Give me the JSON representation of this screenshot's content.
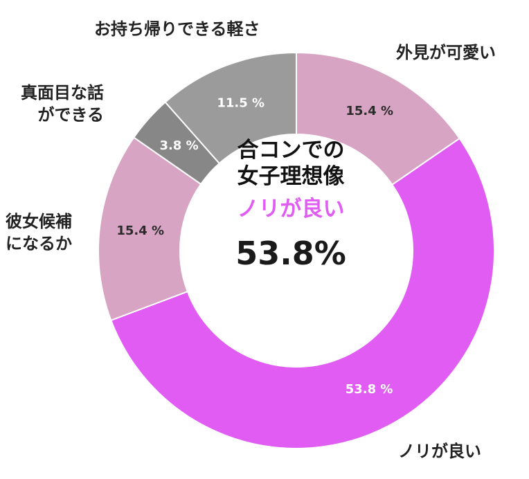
{
  "chart_data": {
    "type": "pie",
    "style": "donut",
    "slices": [
      {
        "label": "外見が可愛い",
        "value": 15.4,
        "value_label": "15.4 %",
        "color": "#d8a4c3"
      },
      {
        "label": "ノリが良い",
        "value": 53.8,
        "value_label": "53.8 %",
        "color": "#e05cf3"
      },
      {
        "label": "彼女候補\nになるか",
        "value": 15.4,
        "value_label": "15.4 %",
        "color": "#d8a4c3"
      },
      {
        "label": "真面目な話\nができる",
        "value": 3.8,
        "value_label": "3.8 %",
        "color": "#878787"
      },
      {
        "label": "お持ち帰りできる軽さ",
        "value": 11.5,
        "value_label": "11.5 %",
        "color": "#9b9b9b"
      }
    ],
    "start": "12 o'clock",
    "direction": "clockwise"
  },
  "center": {
    "title": "合コンでの\n女子理想像",
    "top_label": "ノリが良い",
    "top_value": "53.8%",
    "accent_color": "#e05cf3"
  }
}
